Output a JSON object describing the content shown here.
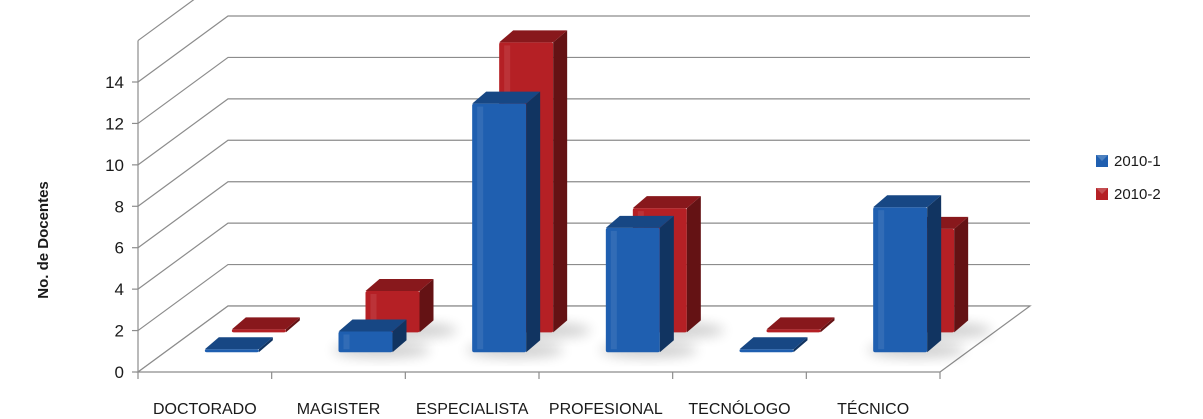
{
  "chart_data": {
    "type": "bar",
    "categories": [
      "DOCTORADO",
      "MAGISTER",
      "ESPECIALISTA",
      "PROFESIONAL",
      "TECNÓLOGO",
      "TÉCNICO"
    ],
    "series": [
      {
        "name": "2010-1",
        "values": [
          0,
          1,
          12,
          6,
          0,
          7
        ],
        "color": "#1f5fb0"
      },
      {
        "name": "2010-2",
        "values": [
          0,
          2,
          14,
          6,
          0,
          5
        ],
        "color": "#b52025"
      }
    ],
    "xlabel": "",
    "ylabel": "No. de Docentes",
    "ylim": [
      0,
      14
    ],
    "yticks": [
      0,
      2,
      4,
      6,
      8,
      10,
      12,
      14
    ],
    "grid": true,
    "legend": "right",
    "style": "3d-clustered-column"
  }
}
